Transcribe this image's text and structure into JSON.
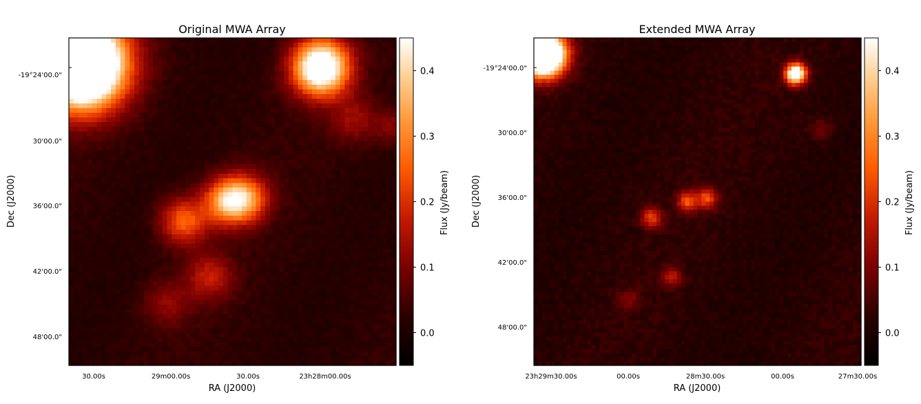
{
  "chart_data": [
    {
      "type": "heatmap",
      "title": "Original MWA Array",
      "xlabel": "RA (J2000)",
      "ylabel": "Dec (J2000)",
      "x_ticks": [
        "30.00s",
        "29m00.00s",
        "30.00s",
        "23h28m00.00s"
      ],
      "y_ticks": [
        "-19°24'00.0\"",
        "30'00.0\"",
        "36'00.0\"",
        "42'00.0\"",
        "48'00.0\""
      ],
      "colorbar": {
        "label": "Flux (Jy/beam)",
        "range": [
          -0.05,
          0.45
        ],
        "ticks": [
          "0.0",
          "0.1",
          "0.2",
          "0.3",
          "0.4"
        ],
        "tick_values": [
          0.0,
          0.1,
          0.2,
          0.3,
          0.4
        ],
        "colormap": "gist_heat"
      },
      "grid": false,
      "sources": [
        {
          "x": 0.04,
          "y": 0.08,
          "r": 0.09,
          "flux": 0.9
        },
        {
          "x": 0.77,
          "y": 0.09,
          "r": 0.06,
          "flux": 0.55
        },
        {
          "x": 0.48,
          "y": 0.5,
          "r": 0.05,
          "flux": 0.28
        },
        {
          "x": 0.54,
          "y": 0.49,
          "r": 0.05,
          "flux": 0.26
        },
        {
          "x": 0.35,
          "y": 0.56,
          "r": 0.05,
          "flux": 0.23
        },
        {
          "x": 0.43,
          "y": 0.73,
          "r": 0.05,
          "flux": 0.14
        },
        {
          "x": 0.87,
          "y": 0.25,
          "r": 0.05,
          "flux": 0.1
        },
        {
          "x": 0.3,
          "y": 0.81,
          "r": 0.05,
          "flux": 0.09
        },
        {
          "x": 0.99,
          "y": 0.27,
          "r": 0.04,
          "flux": 0.09
        },
        {
          "x": 0.15,
          "y": 0.1,
          "r": 0.04,
          "flux": -0.02
        }
      ]
    },
    {
      "type": "heatmap",
      "title": "Extended MWA Array",
      "xlabel": "RA (J2000)",
      "ylabel": "Dec (J2000)",
      "x_ticks": [
        "23h29m30.00s",
        "00.00s",
        "28m30.00s",
        "00.00s",
        "27m30.00s"
      ],
      "y_ticks": [
        "-19°24'00.0\"",
        "30'00.0\"",
        "36'00.0\"",
        "42'00.0\"",
        "48'00.0\""
      ],
      "colorbar": {
        "label": "Flux (Jy/beam)",
        "range": [
          -0.05,
          0.45
        ],
        "ticks": [
          "0.0",
          "0.1",
          "0.2",
          "0.3",
          "0.4"
        ],
        "tick_values": [
          0.0,
          0.1,
          0.2,
          0.3,
          0.4
        ],
        "colormap": "gist_heat"
      },
      "grid": false,
      "sources": [
        {
          "x": 0.03,
          "y": 0.05,
          "r": 0.045,
          "flux": 0.9
        },
        {
          "x": 0.8,
          "y": 0.11,
          "r": 0.022,
          "flux": 0.55
        },
        {
          "x": 0.47,
          "y": 0.5,
          "r": 0.022,
          "flux": 0.22
        },
        {
          "x": 0.53,
          "y": 0.49,
          "r": 0.022,
          "flux": 0.21
        },
        {
          "x": 0.36,
          "y": 0.55,
          "r": 0.022,
          "flux": 0.2
        },
        {
          "x": 0.42,
          "y": 0.73,
          "r": 0.022,
          "flux": 0.13
        },
        {
          "x": 0.29,
          "y": 0.8,
          "r": 0.022,
          "flux": 0.08
        },
        {
          "x": 0.88,
          "y": 0.28,
          "r": 0.025,
          "flux": 0.07
        }
      ]
    }
  ]
}
